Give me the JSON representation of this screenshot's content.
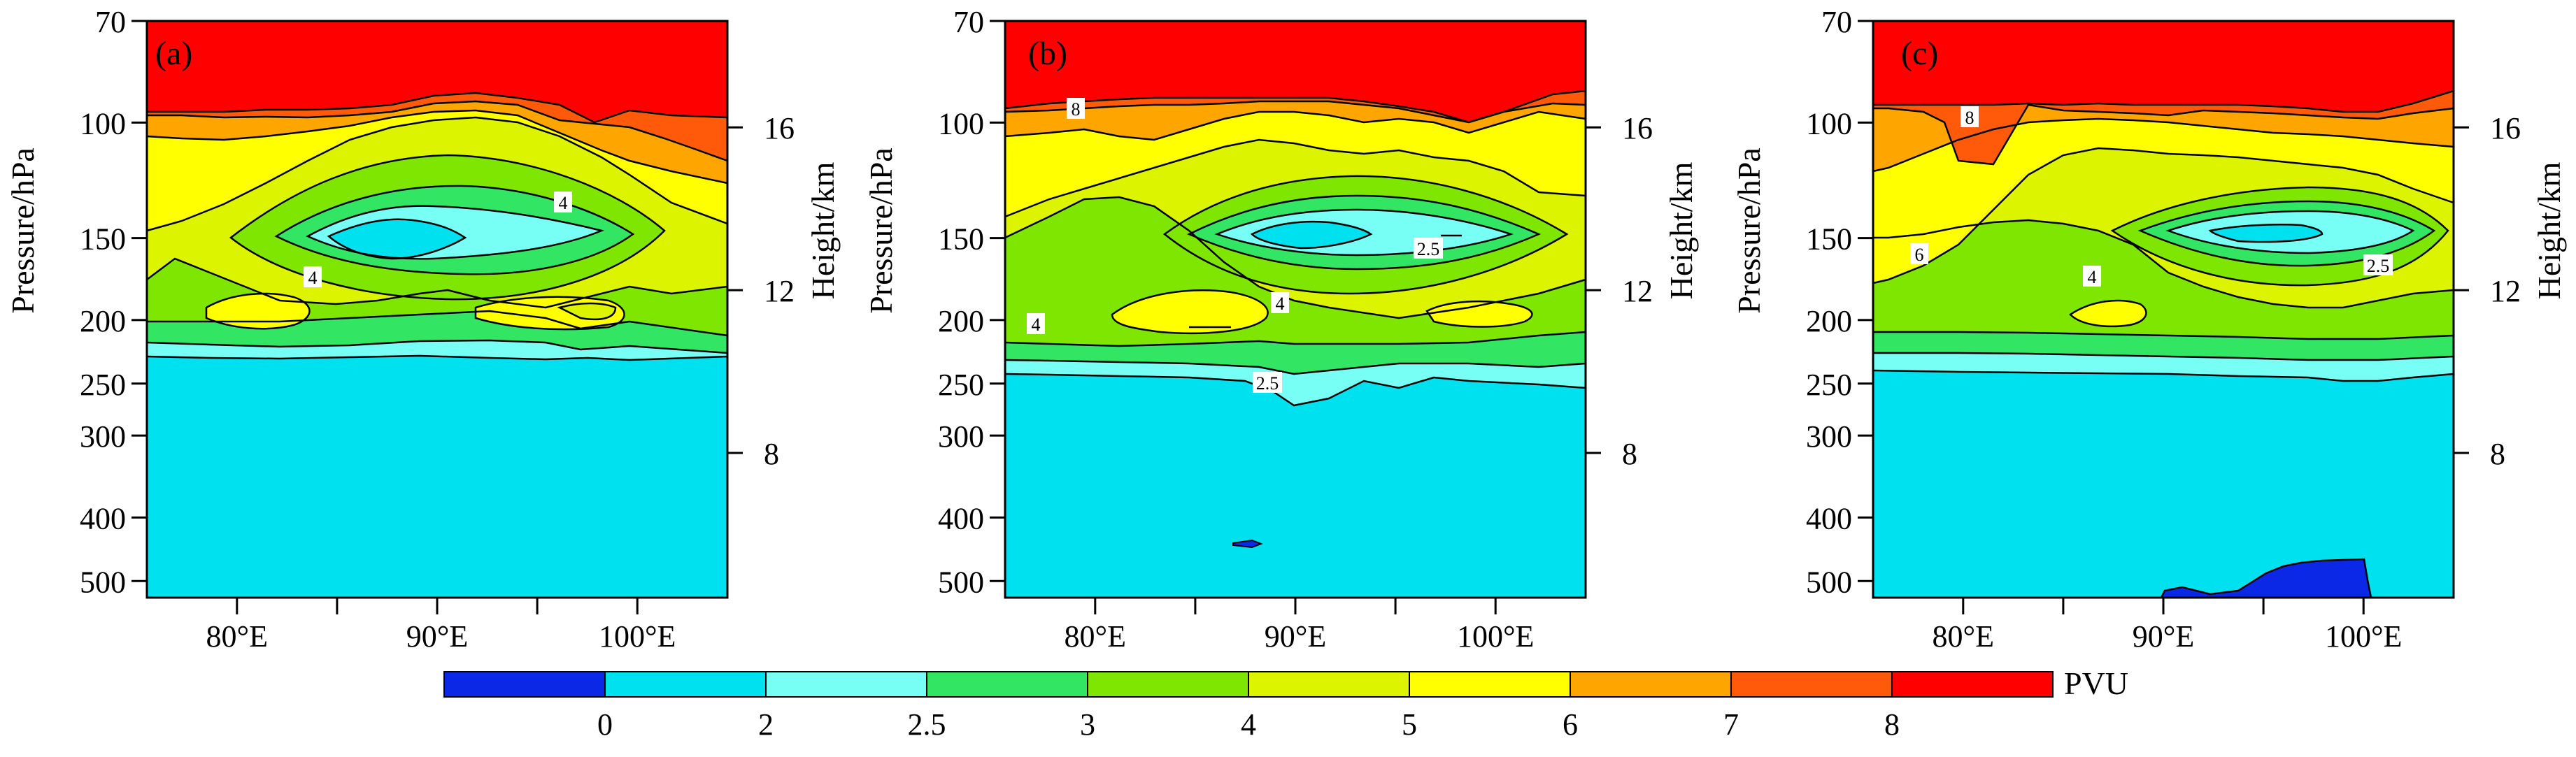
{
  "chart_data": [
    {
      "panel": "(a)",
      "type": "contour",
      "xlabel": "",
      "ylabel": "Pressure/hPa",
      "ylabel_right": "Height/km",
      "x_ticks": [
        "80°E",
        "90°E",
        "100°E"
      ],
      "y_ticks": [
        "70",
        "100",
        "150",
        "200",
        "250",
        "300",
        "400",
        "500"
      ],
      "y_ticks_right": [
        "16",
        "12",
        "8"
      ],
      "contour_labels": [
        "4",
        "4"
      ],
      "xlim": [
        75.5,
        104.5
      ],
      "ylim_hPa": [
        530,
        70
      ],
      "y_scale": "log-pressure"
    },
    {
      "panel": "(b)",
      "type": "contour",
      "xlabel": "",
      "ylabel": "Pressure/hPa",
      "ylabel_right": "Height/km",
      "x_ticks": [
        "80°E",
        "90°E",
        "100°E"
      ],
      "y_ticks": [
        "70",
        "100",
        "150",
        "200",
        "250",
        "300",
        "400",
        "500"
      ],
      "y_ticks_right": [
        "16",
        "12",
        "8"
      ],
      "contour_labels": [
        "8",
        "2.5",
        "4",
        "4",
        "2.5"
      ],
      "xlim": [
        75.5,
        104.5
      ],
      "ylim_hPa": [
        530,
        70
      ],
      "y_scale": "log-pressure"
    },
    {
      "panel": "(c)",
      "type": "contour",
      "xlabel": "",
      "ylabel": "Pressure/hPa",
      "ylabel_right": "Height/km",
      "x_ticks": [
        "80°E",
        "90°E",
        "100°E"
      ],
      "y_ticks": [
        "70",
        "100",
        "150",
        "200",
        "250",
        "300",
        "400",
        "500"
      ],
      "y_ticks_right": [
        "16",
        "12",
        "8"
      ],
      "contour_labels": [
        "8",
        "6",
        "4",
        "2.5"
      ],
      "xlim": [
        75.5,
        104.5
      ],
      "ylim_hPa": [
        530,
        70
      ],
      "y_scale": "log-pressure"
    }
  ],
  "colorbar": {
    "unit": "PVU",
    "tick_labels": [
      "0",
      "2",
      "2.5",
      "3",
      "4",
      "5",
      "6",
      "7",
      "8"
    ],
    "colors": [
      "#0a28e6",
      "#00e1f0",
      "#78fff5",
      "#32e664",
      "#7ee600",
      "#ddf400",
      "#ffff00",
      "#ffa500",
      "#ff5a0a",
      "#ff0000"
    ]
  }
}
